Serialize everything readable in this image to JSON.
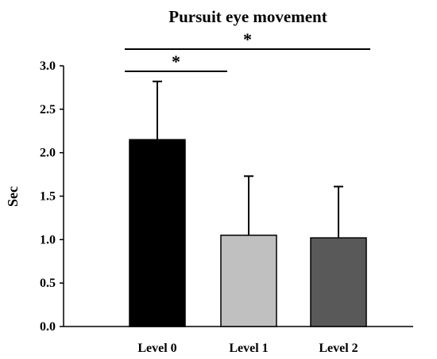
{
  "chart_data": {
    "type": "bar",
    "title": "Pursuit eye movement",
    "xlabel": "",
    "ylabel": "Sec",
    "ylim": [
      0,
      3.0
    ],
    "yticks": [
      "0.0",
      "0.5",
      "1.0",
      "1.5",
      "2.0",
      "2.5",
      "3.0"
    ],
    "categories": [
      "Level 0",
      "Level 1",
      "Level 2"
    ],
    "values": [
      2.15,
      1.05,
      1.02
    ],
    "error_upper": [
      0.67,
      0.68,
      0.59
    ],
    "bar_colors": [
      "#000000",
      "#c0c0c0",
      "#595959"
    ],
    "significance": [
      {
        "from": "Level 0",
        "to": "Level 1",
        "label": "*"
      },
      {
        "from": "Level 0",
        "to": "Level 2",
        "label": "*"
      }
    ],
    "grid": false,
    "legend": "none"
  }
}
